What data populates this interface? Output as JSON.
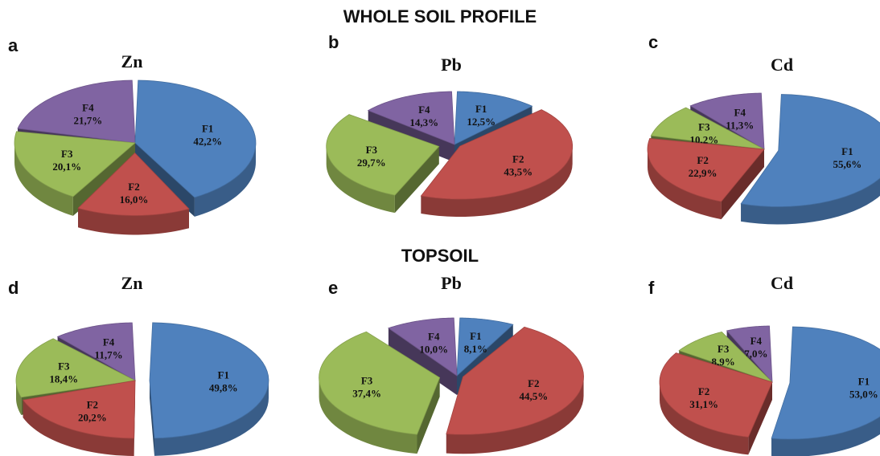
{
  "titles": {
    "whole": "WHOLE SOIL PROFILE",
    "top": "TOPSOIL"
  },
  "colors": {
    "F1": "#4f81bd",
    "F2": "#c0504d",
    "F3": "#9bbb59",
    "F4": "#8064a2"
  },
  "chart_data": [
    {
      "type": "pie",
      "panel": "a",
      "title": "Zn",
      "categories": [
        "F1",
        "F2",
        "F3",
        "F4"
      ],
      "values": [
        42.2,
        16.0,
        20.1,
        21.7
      ],
      "labels": [
        "42,2%",
        "16,0%",
        "20,1%",
        "21,7%"
      ]
    },
    {
      "type": "pie",
      "panel": "b",
      "title": "Pb",
      "categories": [
        "F1",
        "F2",
        "F3",
        "F4"
      ],
      "values": [
        12.5,
        43.5,
        29.7,
        14.3
      ],
      "labels": [
        "12,5%",
        "43,5%",
        "29,7%",
        "14,3%"
      ]
    },
    {
      "type": "pie",
      "panel": "c",
      "title": "Cd",
      "categories": [
        "F1",
        "F2",
        "F3",
        "F4"
      ],
      "values": [
        55.6,
        22.9,
        10.2,
        11.3
      ],
      "labels": [
        "55,6%",
        "22,9%",
        "10,2%",
        "11,3%"
      ]
    },
    {
      "type": "pie",
      "panel": "d",
      "title": "Zn",
      "categories": [
        "F1",
        "F2",
        "F3",
        "F4"
      ],
      "values": [
        49.8,
        20.2,
        18.4,
        11.7
      ],
      "labels": [
        "49,8%",
        "20,2%",
        "18,4%",
        "11,7%"
      ]
    },
    {
      "type": "pie",
      "panel": "e",
      "title": "Pb",
      "categories": [
        "F1",
        "F2",
        "F3",
        "F4"
      ],
      "values": [
        8.1,
        44.5,
        37.4,
        10.0
      ],
      "labels": [
        "8,1%",
        "44,5%",
        "37,4%",
        "10,0%"
      ]
    },
    {
      "type": "pie",
      "panel": "f",
      "title": "Cd",
      "categories": [
        "F1",
        "F2",
        "F3",
        "F4"
      ],
      "values": [
        53.0,
        31.1,
        8.9,
        7.0
      ],
      "labels": [
        "53,0%",
        "31,1%",
        "8,9%",
        "7,0%"
      ]
    }
  ]
}
